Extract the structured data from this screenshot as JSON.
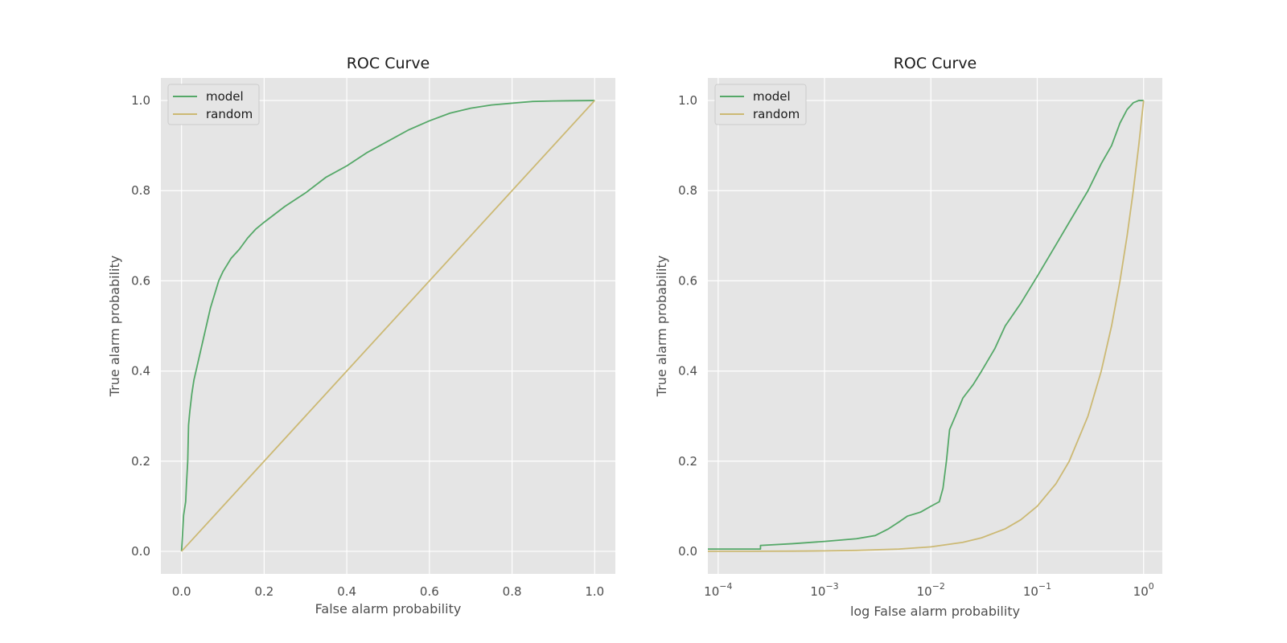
{
  "chart_data": [
    {
      "type": "line",
      "title": "ROC Curve",
      "xlabel": "False alarm probability",
      "ylabel": "True alarm probability",
      "xscale": "linear",
      "xlim": [
        -0.05,
        1.05
      ],
      "ylim": [
        -0.05,
        1.05
      ],
      "xticks": [
        0.0,
        0.2,
        0.4,
        0.6,
        0.8,
        1.0
      ],
      "xtick_labels": [
        "0.0",
        "0.2",
        "0.4",
        "0.6",
        "0.8",
        "1.0"
      ],
      "yticks": [
        0.0,
        0.2,
        0.4,
        0.6,
        0.8,
        1.0
      ],
      "ytick_labels": [
        "0.0",
        "0.2",
        "0.4",
        "0.6",
        "0.8",
        "1.0"
      ],
      "grid": true,
      "legend": "top-left",
      "series": [
        {
          "name": "model",
          "color": "#55a868",
          "x": [
            0.0,
            0.002,
            0.005,
            0.01,
            0.012,
            0.015,
            0.017,
            0.02,
            0.025,
            0.03,
            0.04,
            0.05,
            0.06,
            0.07,
            0.08,
            0.09,
            0.1,
            0.12,
            0.14,
            0.16,
            0.18,
            0.2,
            0.25,
            0.3,
            0.35,
            0.4,
            0.45,
            0.5,
            0.55,
            0.6,
            0.65,
            0.7,
            0.75,
            0.8,
            0.85,
            0.9,
            0.95,
            1.0
          ],
          "y": [
            0.0,
            0.03,
            0.08,
            0.11,
            0.15,
            0.2,
            0.28,
            0.31,
            0.35,
            0.38,
            0.42,
            0.46,
            0.5,
            0.54,
            0.57,
            0.6,
            0.62,
            0.65,
            0.67,
            0.695,
            0.715,
            0.73,
            0.765,
            0.795,
            0.83,
            0.855,
            0.885,
            0.91,
            0.935,
            0.955,
            0.972,
            0.983,
            0.99,
            0.994,
            0.998,
            0.999,
            0.9995,
            1.0
          ]
        },
        {
          "name": "random",
          "color": "#ccb974",
          "x": [
            0.0,
            1.0
          ],
          "y": [
            0.0,
            1.0
          ]
        }
      ]
    },
    {
      "type": "line",
      "title": "ROC Curve",
      "xlabel": "log False alarm probability",
      "ylabel": "True alarm probability",
      "xscale": "log",
      "xlim": [
        8e-05,
        1.5
      ],
      "ylim": [
        -0.05,
        1.05
      ],
      "xticks": [
        0.0001,
        0.001,
        0.01,
        0.1,
        1.0
      ],
      "xtick_labels": [
        {
          "base": "10",
          "exp": "−4"
        },
        {
          "base": "10",
          "exp": "−3"
        },
        {
          "base": "10",
          "exp": "−2"
        },
        {
          "base": "10",
          "exp": "−1"
        },
        {
          "base": "10",
          "exp": "0"
        }
      ],
      "yticks": [
        0.0,
        0.2,
        0.4,
        0.6,
        0.8,
        1.0
      ],
      "ytick_labels": [
        "0.0",
        "0.2",
        "0.4",
        "0.6",
        "0.8",
        "1.0"
      ],
      "grid": true,
      "legend": "top-left",
      "series": [
        {
          "name": "model",
          "color": "#55a868",
          "x": [
            8e-05,
            0.00025,
            0.00025,
            0.0005,
            0.001,
            0.002,
            0.003,
            0.004,
            0.005,
            0.006,
            0.008,
            0.01,
            0.012,
            0.013,
            0.014,
            0.015,
            0.017,
            0.02,
            0.025,
            0.03,
            0.04,
            0.05,
            0.07,
            0.1,
            0.15,
            0.2,
            0.3,
            0.4,
            0.5,
            0.6,
            0.7,
            0.8,
            0.9,
            1.0
          ],
          "y": [
            0.005,
            0.005,
            0.013,
            0.017,
            0.022,
            0.028,
            0.035,
            0.05,
            0.065,
            0.078,
            0.087,
            0.1,
            0.11,
            0.14,
            0.2,
            0.27,
            0.3,
            0.34,
            0.37,
            0.4,
            0.45,
            0.5,
            0.55,
            0.61,
            0.68,
            0.73,
            0.8,
            0.86,
            0.9,
            0.95,
            0.98,
            0.995,
            1.0,
            1.0
          ]
        },
        {
          "name": "random",
          "color": "#ccb974",
          "x": [
            8e-05,
            0.0001,
            0.0002,
            0.0005,
            0.001,
            0.002,
            0.005,
            0.01,
            0.02,
            0.03,
            0.05,
            0.07,
            0.1,
            0.15,
            0.2,
            0.3,
            0.4,
            0.5,
            0.6,
            0.7,
            0.8,
            0.9,
            1.0
          ],
          "y": [
            8e-05,
            0.0001,
            0.0002,
            0.0005,
            0.001,
            0.002,
            0.005,
            0.01,
            0.02,
            0.03,
            0.05,
            0.07,
            0.1,
            0.15,
            0.2,
            0.3,
            0.4,
            0.5,
            0.6,
            0.7,
            0.8,
            0.9,
            1.0
          ]
        }
      ]
    }
  ]
}
